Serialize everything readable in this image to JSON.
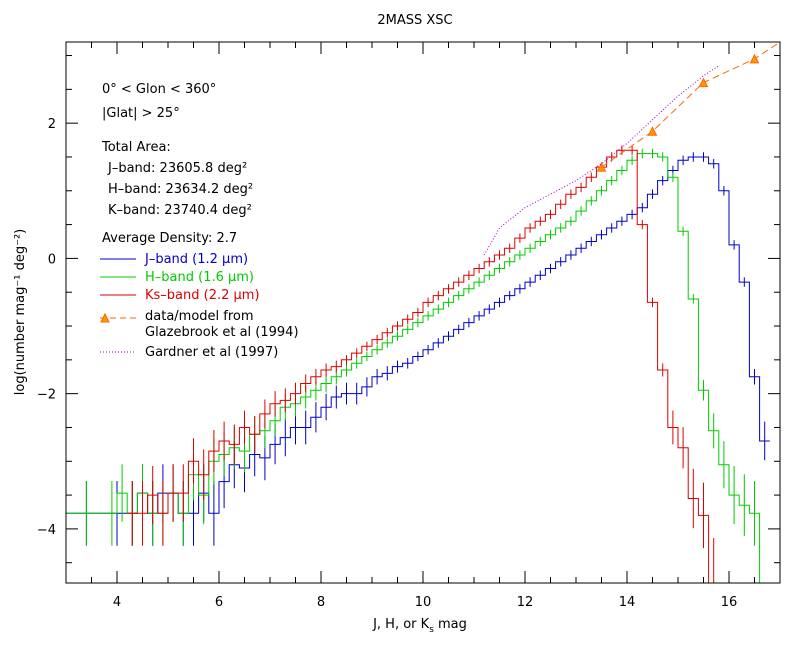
{
  "chart_data": {
    "type": "line",
    "title": "2MASS XSC",
    "xlabel": "J, H, or K",
    "xlabel_sub": "s",
    "xlabel_tail": " mag",
    "ylabel": "log(number mag⁻¹ deg⁻²)",
    "xlim": [
      3.0,
      17.0
    ],
    "ylim": [
      -4.8,
      3.2
    ],
    "x_ticks": [
      4,
      6,
      8,
      10,
      12,
      14,
      16
    ],
    "y_ticks": [
      -4,
      -2,
      0,
      2
    ],
    "grid": false,
    "annotations": {
      "glon": "0° < Glon < 360°",
      "glat": "|Glat| > 25°",
      "total_area": "Total Area:",
      "j_area": "J–band: 23605.8 deg²",
      "h_area": "H–band: 23634.2 deg²",
      "k_area": "K–band: 23740.4 deg²",
      "avg_density": "Average Density: 2.7"
    },
    "legend": {
      "j": "J–band (1.2 μm)",
      "h": "H–band (1.6 μm)",
      "k": "Ks–band (2.2 μm)",
      "glazebrook_1": "data/model from",
      "glazebrook_2": "Glazebrook et al (1994)",
      "gardner": "Gardner et al (1997)"
    },
    "series": [
      {
        "name": "J-band (1.2 μm)",
        "color": "#0000cc",
        "kind": "step",
        "bin_edges": [
          3.0,
          3.8,
          4.2,
          4.4,
          4.6,
          4.8,
          5.0,
          5.2,
          5.4,
          5.6,
          5.8,
          6.0,
          6.2,
          6.4,
          6.6,
          6.8,
          7.0,
          7.2,
          7.4,
          7.6,
          7.8,
          8.0,
          8.2,
          8.4,
          8.6,
          8.8,
          9.0,
          9.2,
          9.4,
          9.6,
          9.8,
          10.0,
          10.2,
          10.4,
          10.6,
          10.8,
          11.0,
          11.2,
          11.4,
          11.6,
          11.8,
          12.0,
          12.2,
          12.4,
          12.6,
          12.8,
          13.0,
          13.2,
          13.4,
          13.6,
          13.8,
          14.0,
          14.2,
          14.4,
          14.6,
          14.8,
          15.0,
          15.2,
          15.4,
          15.6,
          15.8,
          16.0,
          16.2,
          16.4,
          16.6,
          16.8
        ],
        "values": [
          -3.77,
          -3.77,
          -3.77,
          -3.47,
          -3.77,
          -3.47,
          -3.47,
          -3.77,
          -3.77,
          -3.47,
          -3.77,
          -3.3,
          -3.05,
          -3.1,
          -2.9,
          -2.95,
          -2.75,
          -2.65,
          -2.5,
          -2.5,
          -2.35,
          -2.2,
          -2.05,
          -2.0,
          -2.0,
          -1.9,
          -1.75,
          -1.7,
          -1.6,
          -1.55,
          -1.45,
          -1.35,
          -1.25,
          -1.15,
          -1.05,
          -0.95,
          -0.85,
          -0.75,
          -0.65,
          -0.55,
          -0.45,
          -0.35,
          -0.25,
          -0.15,
          -0.05,
          0.05,
          0.15,
          0.25,
          0.35,
          0.45,
          0.55,
          0.65,
          0.75,
          0.95,
          1.15,
          1.3,
          1.45,
          1.5,
          1.5,
          1.4,
          1.0,
          0.2,
          -0.35,
          -1.75,
          -2.7
        ]
      },
      {
        "name": "H-band (1.6 μm)",
        "color": "#00cc00",
        "kind": "step",
        "bin_edges": [
          3.0,
          3.8,
          4.0,
          4.2,
          4.4,
          4.6,
          4.8,
          5.0,
          5.2,
          5.4,
          5.6,
          5.8,
          6.0,
          6.2,
          6.4,
          6.6,
          6.8,
          7.0,
          7.2,
          7.4,
          7.6,
          7.8,
          8.0,
          8.2,
          8.4,
          8.6,
          8.8,
          9.0,
          9.2,
          9.4,
          9.6,
          9.8,
          10.0,
          10.2,
          10.4,
          10.6,
          10.8,
          11.0,
          11.2,
          11.4,
          11.6,
          11.8,
          12.0,
          12.2,
          12.4,
          12.6,
          12.8,
          13.0,
          13.2,
          13.4,
          13.6,
          13.8,
          14.0,
          14.2,
          14.4,
          14.6,
          14.8,
          15.0,
          15.2,
          15.4,
          15.6,
          15.8,
          16.0,
          16.2,
          16.4,
          16.6
        ],
        "values": [
          -3.77,
          -3.77,
          -3.47,
          -3.77,
          -3.47,
          -3.77,
          -3.77,
          -3.47,
          -3.77,
          -3.2,
          -3.5,
          -3.0,
          -2.9,
          -2.8,
          -2.85,
          -2.6,
          -2.55,
          -2.4,
          -2.2,
          -2.15,
          -2.05,
          -1.95,
          -1.85,
          -1.75,
          -1.65,
          -1.55,
          -1.45,
          -1.35,
          -1.25,
          -1.15,
          -1.05,
          -0.95,
          -0.85,
          -0.75,
          -0.65,
          -0.55,
          -0.45,
          -0.35,
          -0.25,
          -0.15,
          -0.05,
          0.05,
          0.15,
          0.25,
          0.35,
          0.45,
          0.55,
          0.7,
          0.85,
          1.0,
          1.15,
          1.3,
          1.45,
          1.55,
          1.55,
          1.5,
          1.2,
          0.4,
          -0.6,
          -1.95,
          -2.55,
          -3.05,
          -3.5,
          -3.65,
          -3.77,
          -4.8
        ]
      },
      {
        "name": "Ks-band (2.2 μm)",
        "color": "#dd0000",
        "kind": "step",
        "bin_edges": [
          4.2,
          4.4,
          4.6,
          4.8,
          5.0,
          5.2,
          5.4,
          5.6,
          5.8,
          6.0,
          6.2,
          6.4,
          6.6,
          6.8,
          7.0,
          7.2,
          7.4,
          7.6,
          7.8,
          8.0,
          8.2,
          8.4,
          8.6,
          8.8,
          9.0,
          9.2,
          9.4,
          9.6,
          9.8,
          10.0,
          10.2,
          10.4,
          10.6,
          10.8,
          11.0,
          11.2,
          11.4,
          11.6,
          11.8,
          12.0,
          12.2,
          12.4,
          12.6,
          12.8,
          13.0,
          13.2,
          13.4,
          13.6,
          13.8,
          14.0,
          14.2,
          14.4,
          14.6,
          14.8,
          15.0,
          15.2,
          15.4,
          15.6,
          15.8
        ],
        "values": [
          -3.77,
          -3.77,
          -3.5,
          -3.77,
          -3.47,
          -3.47,
          -3.0,
          -3.2,
          -2.85,
          -2.7,
          -2.75,
          -2.5,
          -2.6,
          -2.3,
          -2.15,
          -2.1,
          -2.0,
          -1.85,
          -1.75,
          -1.65,
          -1.6,
          -1.5,
          -1.4,
          -1.3,
          -1.2,
          -1.1,
          -1.0,
          -0.9,
          -0.8,
          -0.65,
          -0.55,
          -0.45,
          -0.35,
          -0.25,
          -0.15,
          -0.05,
          0.05,
          0.15,
          0.3,
          0.45,
          0.55,
          0.65,
          0.8,
          0.95,
          1.05,
          1.2,
          1.35,
          1.5,
          1.6,
          1.6,
          0.5,
          -0.65,
          -1.65,
          -2.5,
          -2.8,
          -3.55,
          -3.8,
          -4.8,
          -4.8
        ]
      },
      {
        "name": "data/model from Glazebrook et al (1994)",
        "color": "#ff6600",
        "kind": "dashed-points",
        "x": [
          13.5,
          14.5,
          15.5,
          16.5
        ],
        "y": [
          1.35,
          1.88,
          2.6,
          2.95
        ],
        "line_x": [
          13.5,
          14.5,
          15.5,
          16.5,
          17.0
        ],
        "line_y": [
          1.35,
          1.88,
          2.6,
          2.95,
          3.2
        ]
      },
      {
        "name": "Gardner et al (1997)",
        "color": "#9900cc",
        "kind": "dotted",
        "x": [
          11.2,
          11.5,
          12.0,
          12.5,
          13.0,
          13.5,
          14.0,
          14.5,
          15.0,
          15.5,
          15.8
        ],
        "y": [
          0.05,
          0.45,
          0.75,
          0.95,
          1.15,
          1.4,
          1.7,
          2.05,
          2.4,
          2.7,
          2.85
        ]
      }
    ]
  }
}
